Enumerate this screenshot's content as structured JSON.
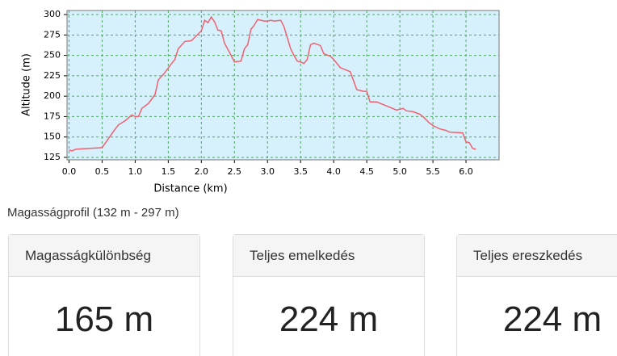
{
  "chart_data": {
    "type": "line",
    "xlabel": "Distance (km)",
    "ylabel": "Altitude (m)",
    "color": "#f06070",
    "x": [
      0.0,
      0.05,
      0.1,
      0.5,
      0.7,
      0.75,
      0.85,
      0.95,
      1.0,
      1.05,
      1.1,
      1.2,
      1.3,
      1.35,
      1.45,
      1.55,
      1.6,
      1.65,
      1.75,
      1.85,
      1.9,
      2.0,
      2.05,
      2.1,
      2.15,
      2.2,
      2.25,
      2.3,
      2.35,
      2.45,
      2.5,
      2.6,
      2.65,
      2.7,
      2.75,
      2.8,
      2.85,
      2.95,
      3.0,
      3.05,
      3.1,
      3.2,
      3.25,
      3.35,
      3.4,
      3.45,
      3.5,
      3.55,
      3.6,
      3.65,
      3.7,
      3.8,
      3.85,
      3.95,
      4.0,
      4.1,
      4.25,
      4.35,
      4.45,
      4.5,
      4.55,
      4.65,
      4.95,
      5.05,
      5.1,
      5.2,
      5.3,
      5.35,
      5.45,
      5.5,
      5.6,
      5.7,
      5.75,
      5.95,
      6.0,
      6.05,
      6.1,
      6.15
    ],
    "values": [
      134,
      133,
      135,
      137,
      160,
      165,
      170,
      177,
      175,
      175,
      185,
      191,
      202,
      220,
      229,
      240,
      245,
      258,
      267,
      268,
      272,
      280,
      293,
      290,
      297,
      291,
      281,
      280,
      265,
      250,
      242,
      243,
      258,
      263,
      282,
      287,
      294,
      292,
      292,
      293,
      292,
      293,
      285,
      258,
      250,
      243,
      242,
      240,
      245,
      263,
      265,
      262,
      252,
      249,
      245,
      235,
      230,
      208,
      206,
      206,
      193,
      193,
      183,
      185,
      182,
      181,
      178,
      175,
      167,
      164,
      160,
      158,
      156,
      155,
      144,
      143,
      136,
      135
    ],
    "xlim": [
      -0.03,
      6.5
    ],
    "ylim": [
      122,
      305
    ],
    "xticks": [
      {
        "value": 0,
        "label": "0.0"
      },
      0.5,
      {
        "value": 1,
        "label": "1.0"
      },
      1.5,
      {
        "value": 2,
        "label": "2.0"
      },
      2.5,
      {
        "value": 3,
        "label": "3.0"
      },
      3.5,
      {
        "value": 4,
        "label": "4.0"
      },
      4.5,
      {
        "value": 5,
        "label": "5.0"
      },
      5.5,
      {
        "value": 6,
        "label": "6.0"
      }
    ],
    "yticks": [
      125,
      150,
      175,
      200,
      225,
      250,
      275,
      300
    ],
    "grid": true
  },
  "caption": "Magasságprofil (132 m - 297 m)",
  "cards": [
    {
      "title": "Magasságkülönbség",
      "value": "165 m"
    },
    {
      "title": "Teljes emelkedés",
      "value": "224 m"
    },
    {
      "title": "Teljes ereszkedés",
      "value": "224 m"
    }
  ]
}
